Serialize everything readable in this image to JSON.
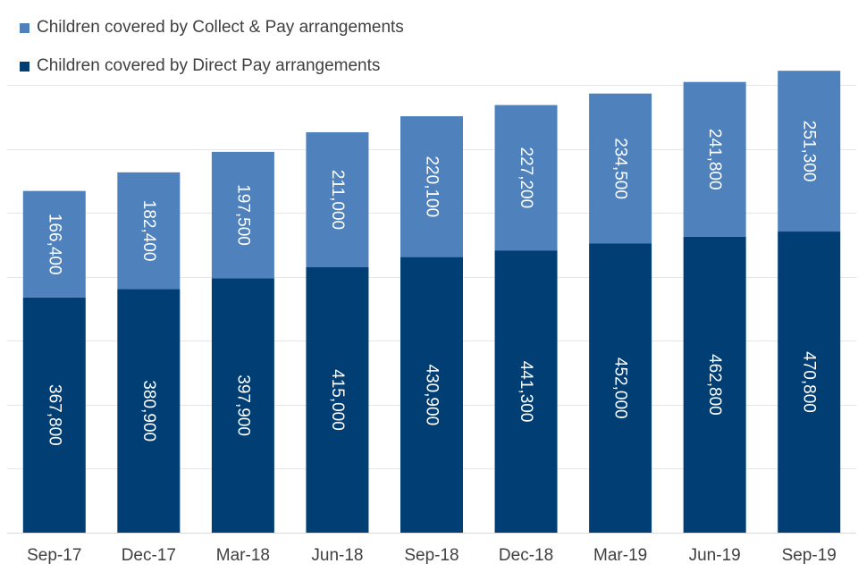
{
  "chart_data": {
    "type": "bar",
    "stacked": true,
    "orientation": "vertical",
    "categories": [
      "Sep-17",
      "Dec-17",
      "Mar-18",
      "Jun-18",
      "Sep-18",
      "Dec-18",
      "Mar-19",
      "Jun-19",
      "Sep-19"
    ],
    "series": [
      {
        "name": "Children covered by Direct Pay arrangements",
        "color": "#003e74",
        "values": [
          367800,
          380900,
          397900,
          415000,
          430900,
          441300,
          452000,
          462800,
          470800
        ],
        "labels": [
          "367,800",
          "380,900",
          "397,900",
          "415,000",
          "430,900",
          "441,300",
          "452,000",
          "462,800",
          "470,800"
        ]
      },
      {
        "name": "Children covered by Collect & Pay arrangements",
        "color": "#4f81bd",
        "values": [
          166400,
          182400,
          197500,
          211000,
          220100,
          227200,
          234500,
          241800,
          251300
        ],
        "labels": [
          "166,400",
          "182,400",
          "197,500",
          "211,000",
          "220,100",
          "227,200",
          "234,500",
          "241,800",
          "251,300"
        ]
      }
    ],
    "legend": [
      "Children covered by Collect & Pay arrangements",
      "Children covered by Direct Pay arrangements"
    ],
    "legend_position": "top-left",
    "ylim": [
      0,
      700000
    ],
    "grid": true,
    "title": "",
    "xlabel": "",
    "ylabel": ""
  }
}
